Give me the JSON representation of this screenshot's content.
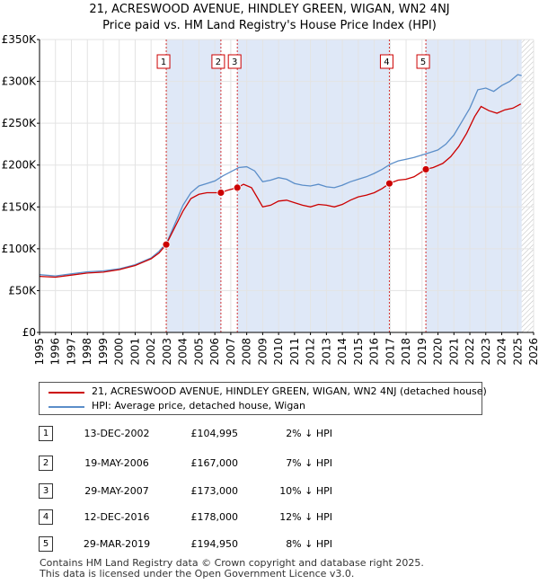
{
  "header": {
    "title_line1": "21, ACRESWOOD AVENUE, HINDLEY GREEN, WIGAN, WN2 4NJ",
    "title_line2": "Price paid vs. HM Land Registry's House Price Index (HPI)"
  },
  "colors": {
    "price_line": "#cc0000",
    "hpi_line": "#5b8ec9",
    "shade": "#dfe8f7",
    "marker_border": "#cc0000"
  },
  "chart_data": {
    "type": "line",
    "title": "Price paid vs. HM Land Registry's House Price Index (HPI)",
    "xlim": [
      1995,
      2026
    ],
    "ylim": [
      0,
      350000
    ],
    "x_ticks": [
      1995,
      1996,
      1997,
      1998,
      1999,
      2000,
      2001,
      2002,
      2003,
      2004,
      2005,
      2006,
      2007,
      2008,
      2009,
      2010,
      2011,
      2012,
      2013,
      2014,
      2015,
      2016,
      2017,
      2018,
      2019,
      2020,
      2021,
      2022,
      2023,
      2024,
      2025,
      2026
    ],
    "y_ticks": [
      {
        "value": 0,
        "label": "£0"
      },
      {
        "value": 50000,
        "label": "£50K"
      },
      {
        "value": 100000,
        "label": "£100K"
      },
      {
        "value": 150000,
        "label": "£150K"
      },
      {
        "value": 200000,
        "label": "£200K"
      },
      {
        "value": 250000,
        "label": "£250K"
      },
      {
        "value": 300000,
        "label": "£300K"
      },
      {
        "value": 350000,
        "label": "£350K"
      }
    ],
    "hatched_future_from": 2025.25,
    "shaded_ranges": [
      [
        2002.95,
        2006.38
      ],
      [
        2007.41,
        2016.95
      ],
      [
        2019.24,
        2025.25
      ]
    ],
    "series": [
      {
        "name": "21, ACRESWOOD AVENUE, HINDLEY GREEN, WIGAN, WN2 4NJ (detached house)",
        "color": "#cc0000",
        "points": [
          [
            1995,
            67000
          ],
          [
            1996,
            66000
          ],
          [
            1997,
            68500
          ],
          [
            1998,
            71000
          ],
          [
            1999,
            72000
          ],
          [
            2000,
            75000
          ],
          [
            2001,
            80000
          ],
          [
            2001.5,
            84000
          ],
          [
            2002,
            88000
          ],
          [
            2002.5,
            95000
          ],
          [
            2002.95,
            104995
          ],
          [
            2003.5,
            126000
          ],
          [
            2004,
            145000
          ],
          [
            2004.5,
            160000
          ],
          [
            2005,
            165000
          ],
          [
            2005.5,
            167000
          ],
          [
            2006,
            167000
          ],
          [
            2006.38,
            167000
          ],
          [
            2006.8,
            170000
          ],
          [
            2007.41,
            173000
          ],
          [
            2007.8,
            177000
          ],
          [
            2008.3,
            173000
          ],
          [
            2008.7,
            160000
          ],
          [
            2009,
            150000
          ],
          [
            2009.5,
            152000
          ],
          [
            2010,
            157000
          ],
          [
            2010.5,
            158000
          ],
          [
            2011,
            155000
          ],
          [
            2011.5,
            152000
          ],
          [
            2012,
            150000
          ],
          [
            2012.5,
            153000
          ],
          [
            2013,
            152000
          ],
          [
            2013.5,
            150000
          ],
          [
            2014,
            153000
          ],
          [
            2014.5,
            158000
          ],
          [
            2015,
            162000
          ],
          [
            2015.5,
            164000
          ],
          [
            2016,
            167000
          ],
          [
            2016.5,
            172000
          ],
          [
            2016.95,
            178000
          ],
          [
            2017.5,
            182000
          ],
          [
            2018,
            183000
          ],
          [
            2018.5,
            186000
          ],
          [
            2019.24,
            194950
          ],
          [
            2019.7,
            197000
          ],
          [
            2020.3,
            202000
          ],
          [
            2020.8,
            210000
          ],
          [
            2021.3,
            222000
          ],
          [
            2021.8,
            238000
          ],
          [
            2022.3,
            258000
          ],
          [
            2022.7,
            270000
          ],
          [
            2023.2,
            265000
          ],
          [
            2023.7,
            262000
          ],
          [
            2024.2,
            266000
          ],
          [
            2024.7,
            268000
          ],
          [
            2025.2,
            273000
          ]
        ]
      },
      {
        "name": "HPI: Average price, detached house, Wigan",
        "color": "#5b8ec9",
        "points": [
          [
            1995,
            69000
          ],
          [
            1996,
            67500
          ],
          [
            1997,
            70000
          ],
          [
            1998,
            72500
          ],
          [
            1999,
            73500
          ],
          [
            2000,
            76000
          ],
          [
            2001,
            81000
          ],
          [
            2001.5,
            85000
          ],
          [
            2002,
            89000
          ],
          [
            2002.5,
            97000
          ],
          [
            2003,
            108000
          ],
          [
            2003.5,
            130000
          ],
          [
            2004,
            152000
          ],
          [
            2004.5,
            167000
          ],
          [
            2005,
            175000
          ],
          [
            2005.5,
            178000
          ],
          [
            2006,
            181000
          ],
          [
            2006.5,
            187000
          ],
          [
            2007,
            192000
          ],
          [
            2007.5,
            197000
          ],
          [
            2008,
            198000
          ],
          [
            2008.5,
            193000
          ],
          [
            2009,
            180000
          ],
          [
            2009.5,
            182000
          ],
          [
            2010,
            185000
          ],
          [
            2010.5,
            183000
          ],
          [
            2011,
            178000
          ],
          [
            2011.5,
            176000
          ],
          [
            2012,
            175000
          ],
          [
            2012.5,
            177000
          ],
          [
            2013,
            174000
          ],
          [
            2013.5,
            173000
          ],
          [
            2014,
            176000
          ],
          [
            2014.5,
            180000
          ],
          [
            2015,
            183000
          ],
          [
            2015.5,
            186000
          ],
          [
            2016,
            190000
          ],
          [
            2016.5,
            195000
          ],
          [
            2017,
            201000
          ],
          [
            2017.5,
            205000
          ],
          [
            2018,
            207000
          ],
          [
            2018.5,
            209000
          ],
          [
            2019,
            212000
          ],
          [
            2019.5,
            215000
          ],
          [
            2020,
            218000
          ],
          [
            2020.5,
            225000
          ],
          [
            2021,
            236000
          ],
          [
            2021.5,
            252000
          ],
          [
            2022,
            268000
          ],
          [
            2022.5,
            290000
          ],
          [
            2023,
            292000
          ],
          [
            2023.5,
            288000
          ],
          [
            2024,
            295000
          ],
          [
            2024.5,
            300000
          ],
          [
            2025,
            308000
          ],
          [
            2025.25,
            307000
          ]
        ]
      }
    ],
    "sales": [
      {
        "label": "1",
        "x": 2002.95,
        "price": 104995
      },
      {
        "label": "2",
        "x": 2006.38,
        "price": 167000
      },
      {
        "label": "3",
        "x": 2007.41,
        "price": 173000
      },
      {
        "label": "4",
        "x": 2016.95,
        "price": 178000
      },
      {
        "label": "5",
        "x": 2019.24,
        "price": 194950
      }
    ]
  },
  "legend": {
    "items": [
      {
        "label": "21, ACRESWOOD AVENUE, HINDLEY GREEN, WIGAN, WN2 4NJ (detached house)",
        "color": "#cc0000"
      },
      {
        "label": "HPI: Average price, detached house, Wigan",
        "color": "#5b8ec9"
      }
    ]
  },
  "transactions": [
    {
      "num": "1",
      "date": "13-DEC-2002",
      "price": "£104,995",
      "hpi": "2% ↓ HPI"
    },
    {
      "num": "2",
      "date": "19-MAY-2006",
      "price": "£167,000",
      "hpi": "7% ↓ HPI"
    },
    {
      "num": "3",
      "date": "29-MAY-2007",
      "price": "£173,000",
      "hpi": "10% ↓ HPI"
    },
    {
      "num": "4",
      "date": "12-DEC-2016",
      "price": "£178,000",
      "hpi": "12% ↓ HPI"
    },
    {
      "num": "5",
      "date": "29-MAR-2019",
      "price": "£194,950",
      "hpi": "8% ↓ HPI"
    }
  ],
  "footer": {
    "line1": "Contains HM Land Registry data © Crown copyright and database right 2025.",
    "line2": "This data is licensed under the Open Government Licence v3.0."
  }
}
